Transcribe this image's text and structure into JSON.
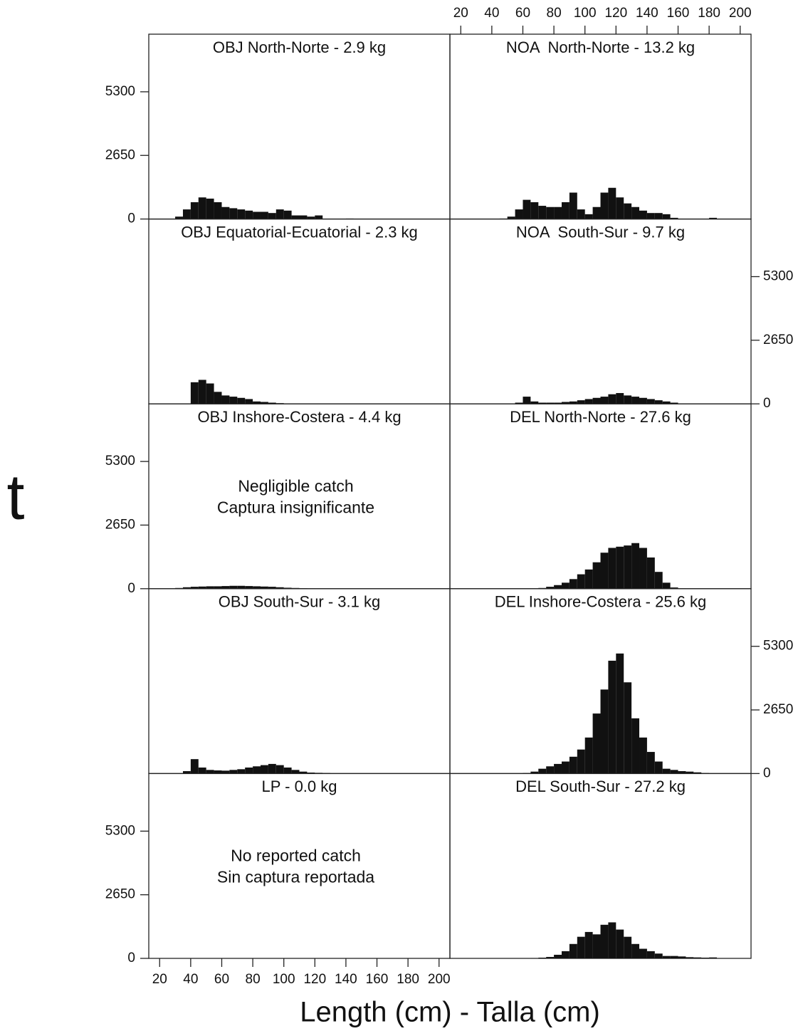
{
  "axis_labels": {
    "x": "Length (cm) - Talla (cm)",
    "y": "t"
  },
  "chart_data": [
    {
      "type": "histogram",
      "title": "OBJ North-Norte - 2.9 kg",
      "bins": [
        20,
        25,
        30,
        35,
        40,
        45,
        50,
        55,
        60,
        65,
        70,
        75,
        80,
        85,
        90,
        95,
        100,
        105,
        110,
        115,
        120,
        125,
        130,
        135,
        140,
        145,
        150,
        155,
        160,
        165,
        170,
        175,
        180,
        185,
        190,
        195,
        200
      ],
      "values": [
        0,
        0,
        100,
        400,
        700,
        900,
        850,
        700,
        500,
        450,
        400,
        350,
        300,
        300,
        250,
        400,
        350,
        150,
        150,
        100,
        150,
        0,
        0,
        0,
        20,
        0,
        0,
        0,
        0,
        0,
        0,
        0,
        0,
        0,
        0,
        0
      ],
      "color": "#111111",
      "xlim": [
        13,
        207
      ],
      "ylim": [
        0,
        7700
      ],
      "yticks": [
        0,
        2650,
        5300
      ],
      "yaxis": "left"
    },
    {
      "type": "histogram",
      "title": "NOA  North-Norte - 13.2 kg",
      "bins": [
        20,
        25,
        30,
        35,
        40,
        45,
        50,
        55,
        60,
        65,
        70,
        75,
        80,
        85,
        90,
        95,
        100,
        105,
        110,
        115,
        120,
        125,
        130,
        135,
        140,
        145,
        150,
        155,
        160,
        165,
        170,
        175,
        180,
        185,
        190,
        195,
        200
      ],
      "values": [
        0,
        0,
        0,
        0,
        0,
        20,
        100,
        400,
        800,
        700,
        550,
        500,
        500,
        700,
        1100,
        400,
        200,
        500,
        1100,
        1300,
        900,
        650,
        500,
        350,
        250,
        250,
        200,
        50,
        0,
        0,
        0,
        0,
        50,
        0,
        0,
        0
      ],
      "color": "#111111",
      "xlim": [
        13,
        207
      ],
      "ylim": [
        0,
        7700
      ],
      "xticks": [
        20,
        40,
        60,
        80,
        100,
        120,
        140,
        160,
        180,
        200
      ],
      "xaxis": "top"
    },
    {
      "type": "histogram",
      "title": "OBJ Equatorial-Ecuatorial - 2.3 kg",
      "bins": [
        20,
        25,
        30,
        35,
        40,
        45,
        50,
        55,
        60,
        65,
        70,
        75,
        80,
        85,
        90,
        95,
        100,
        105,
        110,
        115,
        120,
        125,
        130,
        135,
        140,
        145,
        150,
        155,
        160,
        165,
        170,
        175,
        180,
        185,
        190,
        195,
        200
      ],
      "values": [
        0,
        0,
        0,
        0,
        900,
        1000,
        850,
        500,
        350,
        300,
        250,
        200,
        100,
        80,
        50,
        30,
        20,
        20,
        0,
        0,
        0,
        0,
        0,
        0,
        0,
        0,
        0,
        0,
        0,
        0,
        0,
        0,
        0,
        0,
        0,
        0
      ],
      "color": "#111111",
      "xlim": [
        13,
        207
      ],
      "ylim": [
        0,
        7700
      ]
    },
    {
      "type": "histogram",
      "title": "NOA  South-Sur - 9.7 kg",
      "bins": [
        20,
        25,
        30,
        35,
        40,
        45,
        50,
        55,
        60,
        65,
        70,
        75,
        80,
        85,
        90,
        95,
        100,
        105,
        110,
        115,
        120,
        125,
        130,
        135,
        140,
        145,
        150,
        155,
        160,
        165,
        170,
        175,
        180,
        185,
        190,
        195,
        200
      ],
      "values": [
        0,
        0,
        0,
        0,
        0,
        0,
        0,
        50,
        300,
        100,
        50,
        50,
        50,
        80,
        100,
        150,
        200,
        250,
        300,
        400,
        450,
        350,
        300,
        250,
        200,
        150,
        100,
        50,
        0,
        0,
        0,
        0,
        0,
        0,
        0,
        0
      ],
      "color": "#111111",
      "xlim": [
        13,
        207
      ],
      "ylim": [
        0,
        7700
      ],
      "yticks": [
        0,
        2650,
        5300
      ],
      "yaxis": "right"
    },
    {
      "type": "histogram",
      "title": "OBJ Inshore-Costera - 4.4 kg",
      "annotation": [
        "Negligible catch",
        "Captura insignificante"
      ],
      "bins": [
        20,
        25,
        30,
        35,
        40,
        45,
        50,
        55,
        60,
        65,
        70,
        75,
        80,
        85,
        90,
        95,
        100,
        105,
        110,
        115,
        120,
        125,
        130,
        135,
        140,
        145,
        150,
        155,
        160,
        165,
        170,
        175,
        180,
        185,
        190,
        195,
        200
      ],
      "values": [
        0,
        0,
        30,
        60,
        80,
        90,
        100,
        100,
        110,
        120,
        120,
        110,
        100,
        90,
        80,
        60,
        40,
        30,
        20,
        10,
        0,
        0,
        0,
        0,
        0,
        0,
        0,
        0,
        0,
        0,
        0,
        0,
        0,
        0,
        0,
        0
      ],
      "color": "#111111",
      "xlim": [
        13,
        207
      ],
      "ylim": [
        0,
        7700
      ],
      "yticks": [
        0,
        2650,
        5300
      ],
      "yaxis": "left"
    },
    {
      "type": "histogram",
      "title": "DEL North-Norte - 27.6 kg",
      "bins": [
        20,
        25,
        30,
        35,
        40,
        45,
        50,
        55,
        60,
        65,
        70,
        75,
        80,
        85,
        90,
        95,
        100,
        105,
        110,
        115,
        120,
        125,
        130,
        135,
        140,
        145,
        150,
        155,
        160,
        165,
        170,
        175,
        180,
        185,
        190,
        195,
        200
      ],
      "values": [
        0,
        0,
        0,
        0,
        0,
        0,
        0,
        0,
        0,
        10,
        30,
        80,
        150,
        250,
        400,
        600,
        800,
        1100,
        1500,
        1700,
        1750,
        1800,
        1900,
        1700,
        1300,
        700,
        250,
        50,
        10,
        0,
        0,
        0,
        0,
        0,
        0,
        0
      ],
      "color": "#111111",
      "xlim": [
        13,
        207
      ],
      "ylim": [
        0,
        7700
      ]
    },
    {
      "type": "histogram",
      "title": "OBJ South-Sur - 3.1 kg",
      "bins": [
        20,
        25,
        30,
        35,
        40,
        45,
        50,
        55,
        60,
        65,
        70,
        75,
        80,
        85,
        90,
        95,
        100,
        105,
        110,
        115,
        120,
        125,
        130,
        135,
        140,
        145,
        150,
        155,
        160,
        165,
        170,
        175,
        180,
        185,
        190,
        195,
        200
      ],
      "values": [
        0,
        0,
        0,
        100,
        600,
        250,
        150,
        130,
        120,
        150,
        180,
        250,
        300,
        350,
        400,
        350,
        250,
        150,
        80,
        40,
        30,
        20,
        10,
        0,
        0,
        0,
        0,
        0,
        0,
        0,
        0,
        0,
        0,
        0,
        0,
        0
      ],
      "color": "#111111",
      "xlim": [
        13,
        207
      ],
      "ylim": [
        0,
        7700
      ]
    },
    {
      "type": "histogram",
      "title": "DEL Inshore-Costera - 25.6 kg",
      "bins": [
        20,
        25,
        30,
        35,
        40,
        45,
        50,
        55,
        60,
        65,
        70,
        75,
        80,
        85,
        90,
        95,
        100,
        105,
        110,
        115,
        120,
        125,
        130,
        135,
        140,
        145,
        150,
        155,
        160,
        165,
        170,
        175,
        180,
        185,
        190,
        195,
        200
      ],
      "values": [
        0,
        0,
        0,
        0,
        0,
        0,
        0,
        0,
        20,
        80,
        200,
        300,
        400,
        500,
        700,
        1000,
        1500,
        2500,
        3500,
        4700,
        5000,
        3800,
        2300,
        1500,
        900,
        500,
        200,
        150,
        100,
        80,
        50,
        20,
        10,
        0,
        0,
        0
      ],
      "color": "#111111",
      "xlim": [
        13,
        207
      ],
      "ylim": [
        0,
        7700
      ],
      "yticks": [
        0,
        2650,
        5300
      ],
      "yaxis": "right"
    },
    {
      "type": "histogram",
      "title": "LP - 0.0 kg",
      "annotation": [
        "No reported catch",
        "Sin captura reportada"
      ],
      "bins": [
        20,
        25,
        30,
        35,
        40,
        45,
        50,
        55,
        60,
        65,
        70,
        75,
        80,
        85,
        90,
        95,
        100,
        105,
        110,
        115,
        120,
        125,
        130,
        135,
        140,
        145,
        150,
        155,
        160,
        165,
        170,
        175,
        180,
        185,
        190,
        195,
        200
      ],
      "values": [
        0,
        0,
        0,
        0,
        0,
        0,
        0,
        0,
        0,
        0,
        0,
        0,
        0,
        0,
        0,
        0,
        0,
        0,
        0,
        0,
        0,
        0,
        0,
        0,
        0,
        0,
        0,
        0,
        0,
        0,
        0,
        0,
        0,
        0,
        0,
        0
      ],
      "color": "#111111",
      "xlim": [
        13,
        207
      ],
      "ylim": [
        0,
        7700
      ],
      "yticks": [
        0,
        2650,
        5300
      ],
      "yaxis": "left",
      "xticks": [
        20,
        40,
        60,
        80,
        100,
        120,
        140,
        160,
        180,
        200
      ],
      "xaxis": "bottom"
    },
    {
      "type": "histogram",
      "title": "DEL South-Sur - 27.2 kg",
      "bins": [
        20,
        25,
        30,
        35,
        40,
        45,
        50,
        55,
        60,
        65,
        70,
        75,
        80,
        85,
        90,
        95,
        100,
        105,
        110,
        115,
        120,
        125,
        130,
        135,
        140,
        145,
        150,
        155,
        160,
        165,
        170,
        175,
        180,
        185,
        190,
        195,
        200
      ],
      "values": [
        0,
        0,
        0,
        0,
        0,
        0,
        0,
        0,
        0,
        10,
        30,
        60,
        150,
        300,
        600,
        900,
        1100,
        1000,
        1400,
        1500,
        1200,
        900,
        600,
        400,
        300,
        200,
        100,
        100,
        80,
        50,
        40,
        30,
        40,
        0,
        0,
        0
      ],
      "color": "#111111",
      "xlim": [
        13,
        207
      ],
      "ylim": [
        0,
        7700
      ]
    }
  ]
}
